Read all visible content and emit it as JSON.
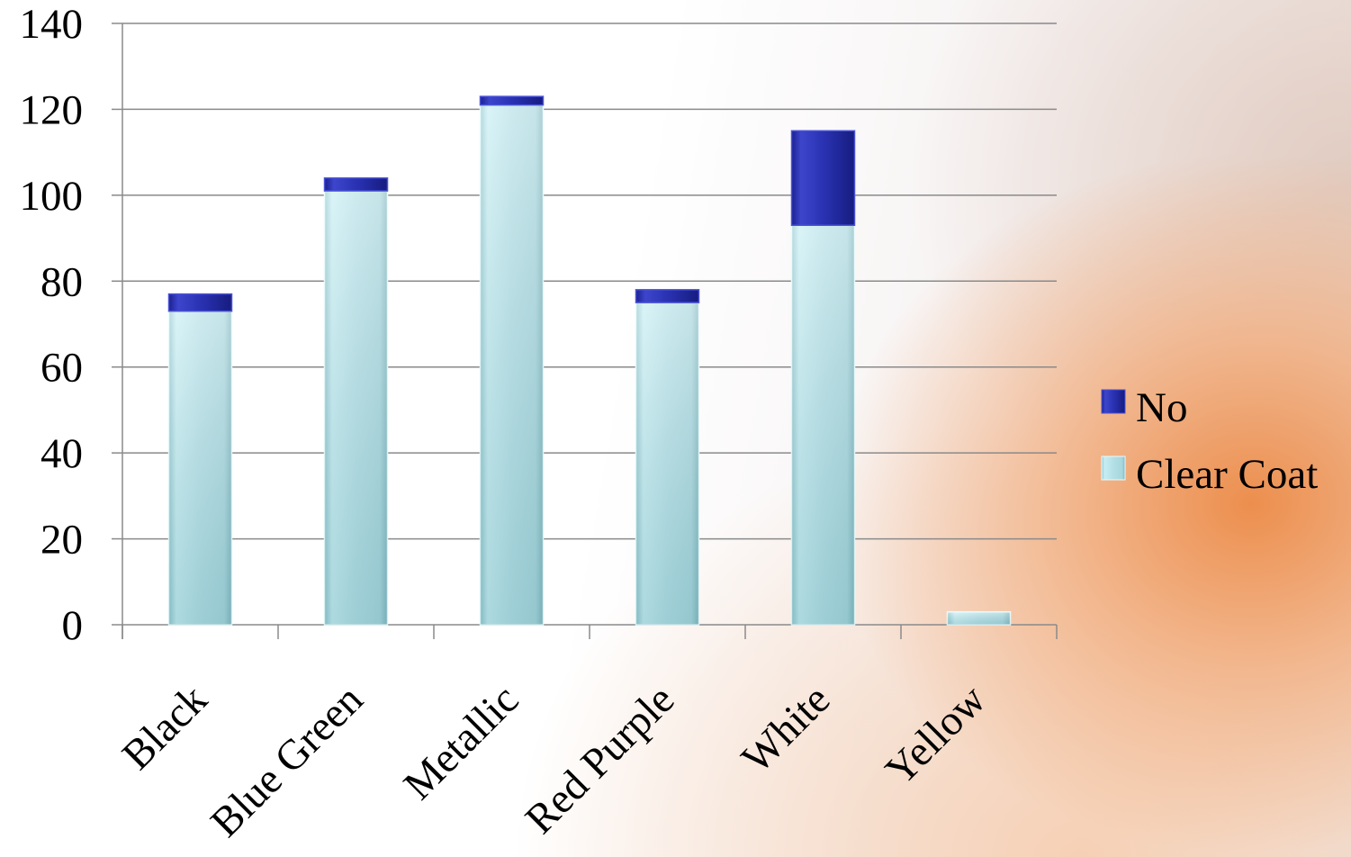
{
  "chart_data": {
    "type": "bar",
    "stacked": true,
    "categories": [
      "Black",
      "Blue Green",
      "Metallic",
      "Red Purple",
      "White",
      "Yellow"
    ],
    "series": [
      {
        "name": "Clear Coat",
        "values": [
          73,
          101,
          121,
          75,
          93,
          3
        ],
        "color": "#b9e3e9"
      },
      {
        "name": "No",
        "values": [
          4,
          3,
          2,
          3,
          22,
          0
        ],
        "color": "#2b33b0"
      }
    ],
    "ylim": [
      0,
      140
    ],
    "yticks": [
      "0",
      "20",
      "40",
      "60",
      "80",
      "100",
      "120",
      "140"
    ],
    "grid": true,
    "legend": "right",
    "legend_order": [
      "No",
      "Clear Coat"
    ],
    "title": "",
    "xlabel": "",
    "ylabel": ""
  }
}
